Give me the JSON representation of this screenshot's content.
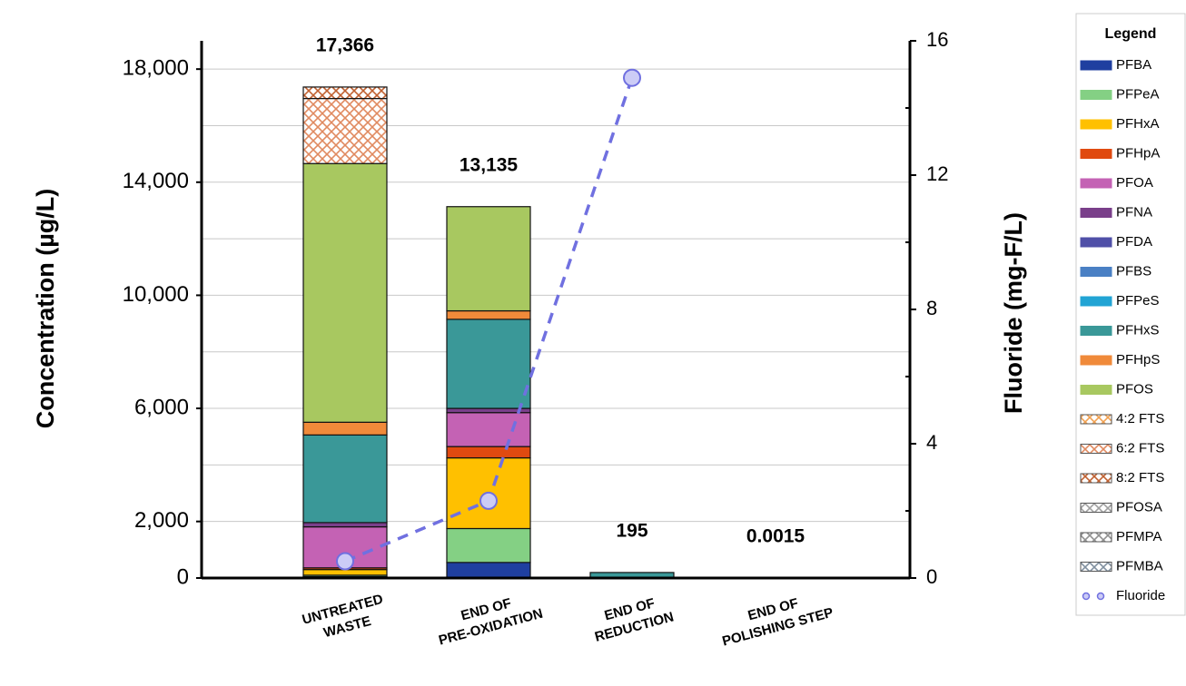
{
  "chart_data": {
    "type": "stacked_bar_line",
    "ylabel": "Concentration (µg/L)",
    "y2label": "Fluoride (mg-F/L)",
    "legend_title": "Legend",
    "legend": "right",
    "grid": true,
    "categories": [
      [
        "UNTREATED",
        "WASTE"
      ],
      [
        "END OF",
        "PRE-OXIDATION"
      ],
      [
        "END OF",
        "REDUCTION"
      ],
      [
        "END OF",
        "POLISHING STEP"
      ]
    ],
    "ylim": [
      0,
      19000
    ],
    "yticks": [
      {
        "value": 0,
        "label": "0"
      },
      {
        "value": 2000,
        "label": "2,000"
      },
      {
        "value": 6000,
        "label": "6,000"
      },
      {
        "value": 10000,
        "label": "10,000"
      },
      {
        "value": 14000,
        "label": "14,000"
      },
      {
        "value": 18000,
        "label": "18,000"
      }
    ],
    "minor_yticks": [
      4000,
      8000,
      12000,
      16000
    ],
    "y2lim": [
      0,
      16
    ],
    "y2ticks": [
      0,
      4,
      8,
      12,
      16
    ],
    "minor_y2ticks": [
      2,
      6,
      10,
      14
    ],
    "totals": [
      17366,
      13135,
      195,
      0.0015
    ],
    "totals_labels": [
      "17,366",
      "13,135",
      "195",
      "0.0015"
    ],
    "series": [
      {
        "name": "PFBA",
        "color": "#1f3fa0",
        "values": [
          50,
          550,
          0,
          0
        ]
      },
      {
        "name": "PFPeA",
        "color": "#84d084",
        "values": [
          50,
          1200,
          0,
          0
        ]
      },
      {
        "name": "PFHxA",
        "color": "#ffc000",
        "values": [
          200,
          2500,
          0,
          0
        ]
      },
      {
        "name": "PFHpA",
        "color": "#e04a10",
        "values": [
          60,
          400,
          0,
          0
        ]
      },
      {
        "name": "PFOA",
        "color": "#c462b4",
        "values": [
          1450,
          1200,
          0,
          0
        ]
      },
      {
        "name": "PFNA",
        "color": "#7a3f8a",
        "values": [
          150,
          150,
          0,
          0
        ]
      },
      {
        "name": "PFDA",
        "color": "#5050a8",
        "values": [
          0,
          0,
          0,
          0
        ]
      },
      {
        "name": "PFBS",
        "color": "#4a80c4",
        "values": [
          0,
          0,
          0,
          0
        ]
      },
      {
        "name": "PFPeS",
        "color": "#22a4d4",
        "values": [
          0,
          0,
          0,
          0
        ]
      },
      {
        "name": "PFHxS",
        "color": "#3a9898",
        "values": [
          3100,
          3150,
          195,
          0
        ]
      },
      {
        "name": "PFHpS",
        "color": "#f08a3a",
        "values": [
          450,
          300,
          0,
          0
        ]
      },
      {
        "name": "PFOS",
        "color": "#a8c860",
        "values": [
          9150,
          3685,
          0,
          0.0015
        ]
      },
      {
        "name": "4:2 FTS",
        "color": "#f0a050",
        "hatched": true,
        "values": [
          0,
          0,
          0,
          0
        ]
      },
      {
        "name": "6:2 FTS",
        "color": "#e08a60",
        "hatched": true,
        "values": [
          2300,
          0,
          0,
          0
        ]
      },
      {
        "name": "8:2 FTS",
        "color": "#c06030",
        "hatched": true,
        "values": [
          406,
          0,
          0,
          0
        ]
      },
      {
        "name": "PFOSA",
        "color": "#a0a0a0",
        "hatched": true,
        "values": [
          0,
          0,
          0,
          0
        ]
      },
      {
        "name": "PFMPA",
        "color": "#909090",
        "hatched": true,
        "values": [
          0,
          0,
          0,
          0
        ]
      },
      {
        "name": "PFMBA",
        "color": "#8090a0",
        "hatched": true,
        "values": [
          0,
          0,
          0,
          0
        ]
      },
      {
        "name": "Fluoride",
        "color": "#7070e0",
        "axis": "y2",
        "kind": "line",
        "values": [
          0.5,
          2.3,
          14.9,
          null
        ]
      }
    ]
  }
}
